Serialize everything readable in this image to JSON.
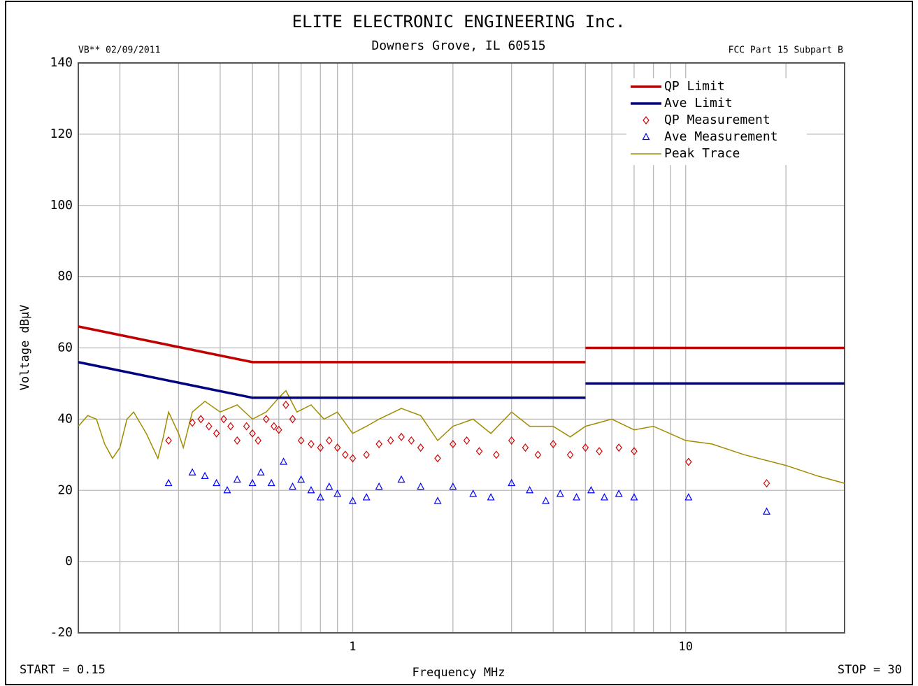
{
  "chart_data": {
    "type": "line",
    "title": "ELITE ELECTRONIC ENGINEERING Inc.",
    "subtitle": "Downers Grove, IL 60515",
    "left_note": "VB**  02/09/2011",
    "right_note": "FCC Part 15 Subpart B",
    "x_label": "Frequency MHz",
    "y_label": "Voltage dBµV",
    "start_label": "START = 0.15",
    "stop_label": "STOP = 30",
    "xscale": "log",
    "xlim": [
      0.15,
      30
    ],
    "ylim": [
      -20,
      140
    ],
    "yticks": [
      -20,
      0,
      20,
      40,
      60,
      80,
      100,
      120,
      140
    ],
    "xticks": [
      1,
      10
    ],
    "xminor": [
      0.2,
      0.3,
      0.4,
      0.5,
      0.6,
      0.7,
      0.8,
      0.9,
      2,
      3,
      4,
      5,
      6,
      7,
      8,
      9,
      20
    ],
    "grid": true,
    "legend": "upper right",
    "series": [
      {
        "name": "QP Limit",
        "color": "#c00000",
        "marker": "line",
        "x": [
          0.15,
          0.5,
          5,
          5,
          5,
          30
        ],
        "values": [
          66,
          56,
          56,
          null,
          60,
          60
        ]
      },
      {
        "name": "Ave Limit",
        "color": "#000080",
        "marker": "line",
        "x": [
          0.15,
          0.5,
          5,
          5,
          5,
          30
        ],
        "values": [
          56,
          46,
          46,
          null,
          50,
          50
        ]
      },
      {
        "name": "QP Measurement",
        "color": "#d00000",
        "marker": "diamond",
        "x": [
          0.28,
          0.33,
          0.35,
          0.37,
          0.39,
          0.41,
          0.43,
          0.45,
          0.48,
          0.5,
          0.52,
          0.55,
          0.58,
          0.6,
          0.63,
          0.66,
          0.7,
          0.75,
          0.8,
          0.85,
          0.9,
          0.95,
          1.0,
          1.1,
          1.2,
          1.3,
          1.4,
          1.5,
          1.6,
          1.8,
          2.0,
          2.2,
          2.4,
          2.7,
          3.0,
          3.3,
          3.6,
          4.0,
          4.5,
          5.0,
          5.5,
          6.3,
          7.0,
          10.2,
          17.5
        ],
        "values": [
          34,
          39,
          40,
          38,
          36,
          40,
          38,
          34,
          38,
          36,
          34,
          40,
          38,
          37,
          44,
          40,
          34,
          33,
          32,
          34,
          32,
          30,
          29,
          30,
          33,
          34,
          35,
          34,
          32,
          29,
          33,
          34,
          31,
          30,
          34,
          32,
          30,
          33,
          30,
          32,
          31,
          32,
          31,
          28,
          22
        ]
      },
      {
        "name": "Ave Measurement",
        "color": "#0000ff",
        "marker": "triangle",
        "x": [
          0.28,
          0.33,
          0.36,
          0.39,
          0.42,
          0.45,
          0.5,
          0.53,
          0.57,
          0.62,
          0.66,
          0.7,
          0.75,
          0.8,
          0.85,
          0.9,
          1.0,
          1.1,
          1.2,
          1.4,
          1.6,
          1.8,
          2.0,
          2.3,
          2.6,
          3.0,
          3.4,
          3.8,
          4.2,
          4.7,
          5.2,
          5.7,
          6.3,
          7.0,
          10.2,
          17.5
        ],
        "values": [
          22,
          25,
          24,
          22,
          20,
          23,
          22,
          25,
          22,
          28,
          21,
          23,
          20,
          18,
          21,
          19,
          17,
          18,
          21,
          23,
          21,
          17,
          21,
          19,
          18,
          22,
          20,
          17,
          19,
          18,
          20,
          18,
          19,
          18,
          18,
          14
        ]
      },
      {
        "name": "Peak Trace",
        "color": "#a08c00",
        "marker": "thin",
        "x": [
          0.15,
          0.16,
          0.17,
          0.18,
          0.19,
          0.2,
          0.21,
          0.22,
          0.24,
          0.26,
          0.27,
          0.28,
          0.3,
          0.31,
          0.33,
          0.36,
          0.4,
          0.45,
          0.5,
          0.55,
          0.6,
          0.63,
          0.68,
          0.75,
          0.82,
          0.9,
          1.0,
          1.1,
          1.2,
          1.4,
          1.6,
          1.8,
          2.0,
          2.3,
          2.6,
          3.0,
          3.4,
          4.0,
          4.5,
          5.0,
          6.0,
          7.0,
          8.0,
          10,
          12,
          15,
          20,
          25,
          30
        ],
        "values": [
          38,
          41,
          40,
          33,
          29,
          32,
          40,
          42,
          36,
          29,
          35,
          42,
          36,
          32,
          42,
          45,
          42,
          44,
          40,
          42,
          46,
          48,
          42,
          44,
          40,
          42,
          36,
          38,
          40,
          43,
          41,
          34,
          38,
          40,
          36,
          42,
          38,
          38,
          35,
          38,
          40,
          37,
          38,
          34,
          33,
          30,
          27,
          24,
          22
        ]
      }
    ]
  }
}
